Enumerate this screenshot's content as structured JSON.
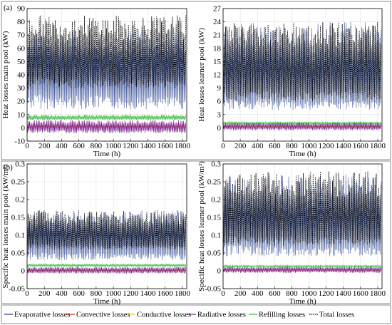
{
  "panel_labels": [
    "(a)",
    "(b)"
  ],
  "legend": [
    {
      "key": "evaporative",
      "label": "Evaporative losses",
      "color": "#1f3a8a",
      "dash": "solid"
    },
    {
      "key": "convective",
      "label": "Convective losses",
      "color": "#e0302a",
      "dash": "solid"
    },
    {
      "key": "conductive",
      "label": "Conductive losses",
      "color": "#e8c41a",
      "dash": "solid"
    },
    {
      "key": "radiative",
      "label": "Radiative losses",
      "color": "#7a1f8f",
      "dash": "solid"
    },
    {
      "key": "refilling",
      "label": "Refilling losses",
      "color": "#2db82d",
      "dash": "solid"
    },
    {
      "key": "total",
      "label": "Total losses",
      "color": "#000000",
      "dash": "dotted"
    }
  ],
  "chart_data": [
    {
      "type": "line",
      "panel": "(a)",
      "title": "",
      "xlabel": "Time (h)",
      "ylabel": "Heat losses main pool (kW)",
      "xlim": [
        0,
        1850
      ],
      "ylim": [
        -10,
        90
      ],
      "xticks": [
        0,
        200,
        400,
        600,
        800,
        1000,
        1200,
        1400,
        1600,
        1800
      ],
      "yticks": [
        -10,
        0,
        10,
        20,
        30,
        40,
        50,
        60,
        70,
        80,
        90
      ],
      "grid": true,
      "series": [
        {
          "name": "Evaporative losses",
          "x": [
            0,
            150,
            300,
            450,
            600,
            750,
            900,
            1050,
            1200,
            1350,
            1500,
            1650,
            1840
          ],
          "values": [
            38,
            40,
            36,
            34,
            37,
            39,
            35,
            33,
            34,
            36,
            35,
            34,
            33
          ],
          "range": [
            14,
            75
          ]
        },
        {
          "name": "Convective losses",
          "x": [
            0,
            300,
            600,
            900,
            1200,
            1500,
            1840
          ],
          "values": [
            1,
            1,
            1,
            1,
            1,
            1,
            1
          ],
          "range": [
            -1,
            3
          ]
        },
        {
          "name": "Conductive losses",
          "x": [
            0,
            300,
            600,
            900,
            1200,
            1500,
            1840
          ],
          "values": [
            0.5,
            0.5,
            0.5,
            0.5,
            0.5,
            0.5,
            0.5
          ],
          "range": [
            0,
            1
          ]
        },
        {
          "name": "Radiative losses",
          "x": [
            0,
            300,
            600,
            900,
            1200,
            1500,
            1840
          ],
          "values": [
            0,
            0.5,
            0,
            -0.5,
            0,
            0.5,
            0
          ],
          "range": [
            -4,
            6
          ]
        },
        {
          "name": "Refilling losses",
          "x": [
            0,
            300,
            600,
            900,
            1200,
            1500,
            1840
          ],
          "values": [
            7,
            7,
            7,
            7,
            7,
            7,
            7
          ],
          "range": [
            6,
            10
          ]
        },
        {
          "name": "Total losses",
          "x": [
            0,
            150,
            300,
            450,
            600,
            750,
            900,
            1050,
            1200,
            1350,
            1500,
            1650,
            1840
          ],
          "values": [
            47,
            49,
            45,
            43,
            46,
            48,
            44,
            42,
            43,
            45,
            44,
            43,
            42
          ],
          "range": [
            30,
            85
          ]
        }
      ]
    },
    {
      "type": "line",
      "panel": "(a)",
      "title": "",
      "xlabel": "Time (h)",
      "ylabel": "Heat losses learner pool (kW)",
      "xlim": [
        0,
        1850
      ],
      "ylim": [
        -3,
        27
      ],
      "xticks": [
        0,
        200,
        400,
        600,
        800,
        1000,
        1200,
        1400,
        1600,
        1800
      ],
      "yticks": [
        0,
        3,
        6,
        9,
        12,
        15,
        18,
        21,
        24,
        27
      ],
      "grid": true,
      "series": [
        {
          "name": "Evaporative losses",
          "x": [
            0,
            150,
            300,
            450,
            600,
            750,
            900,
            1050,
            1200,
            1350,
            1500,
            1650,
            1840
          ],
          "values": [
            9,
            10,
            9,
            9,
            9,
            9,
            8.5,
            8.5,
            9,
            9,
            8.5,
            8.5,
            8
          ],
          "range": [
            4,
            24
          ]
        },
        {
          "name": "Convective losses",
          "x": [
            0,
            300,
            600,
            900,
            1200,
            1500,
            1840
          ],
          "values": [
            0.3,
            0.3,
            0.3,
            0.3,
            0.3,
            0.3,
            0.3
          ],
          "range": [
            -0.2,
            0.8
          ]
        },
        {
          "name": "Conductive losses",
          "x": [
            0,
            300,
            600,
            900,
            1200,
            1500,
            1840
          ],
          "values": [
            0.2,
            0.2,
            0.2,
            0.2,
            0.2,
            0.2,
            0.2
          ],
          "range": [
            0,
            0.4
          ]
        },
        {
          "name": "Radiative losses",
          "x": [
            0,
            300,
            600,
            900,
            1200,
            1500,
            1840
          ],
          "values": [
            0.3,
            0.2,
            0.3,
            0.2,
            0.3,
            0.2,
            0.2
          ],
          "range": [
            -0.6,
            1.2
          ]
        },
        {
          "name": "Refilling losses",
          "x": [
            0,
            300,
            600,
            900,
            1200,
            1500,
            1840
          ],
          "values": [
            1,
            1,
            1,
            1,
            1,
            1,
            1
          ],
          "range": [
            0.8,
            1.4
          ]
        },
        {
          "name": "Total losses",
          "x": [
            0,
            150,
            300,
            450,
            600,
            750,
            900,
            1050,
            1200,
            1350,
            1500,
            1650,
            1840
          ],
          "values": [
            11,
            12,
            11,
            11,
            11,
            11,
            10.5,
            10.5,
            11,
            11,
            10.5,
            10.5,
            10
          ],
          "range": [
            6,
            24
          ]
        }
      ]
    },
    {
      "type": "line",
      "panel": "(b)",
      "title": "",
      "xlabel": "Time (h)",
      "ylabel": "Specific heat losses main pool (kW/m²)",
      "xlim": [
        0,
        1850
      ],
      "ylim": [
        -0.05,
        0.3
      ],
      "xticks": [
        0,
        200,
        400,
        600,
        800,
        1000,
        1200,
        1400,
        1600,
        1800
      ],
      "yticks": [
        -0.05,
        0,
        0.05,
        0.1,
        0.15,
        0.2,
        0.25,
        0.3
      ],
      "grid": true,
      "series": [
        {
          "name": "Evaporative losses",
          "x": [
            0,
            150,
            300,
            450,
            600,
            750,
            900,
            1050,
            1200,
            1350,
            1500,
            1650,
            1840
          ],
          "values": [
            0.075,
            0.08,
            0.072,
            0.068,
            0.074,
            0.078,
            0.07,
            0.066,
            0.068,
            0.072,
            0.07,
            0.068,
            0.066
          ],
          "range": [
            0.03,
            0.17
          ]
        },
        {
          "name": "Convective losses",
          "x": [
            0,
            300,
            600,
            900,
            1200,
            1500,
            1840
          ],
          "values": [
            0.002,
            0.002,
            0.002,
            0.002,
            0.002,
            0.002,
            0.002
          ],
          "range": [
            -0.002,
            0.006
          ]
        },
        {
          "name": "Conductive losses",
          "x": [
            0,
            300,
            600,
            900,
            1200,
            1500,
            1840
          ],
          "values": [
            0.001,
            0.001,
            0.001,
            0.001,
            0.001,
            0.001,
            0.001
          ],
          "range": [
            0,
            0.002
          ]
        },
        {
          "name": "Radiative losses",
          "x": [
            0,
            300,
            600,
            900,
            1200,
            1500,
            1840
          ],
          "values": [
            0,
            0.001,
            0,
            -0.001,
            0,
            0.001,
            0
          ],
          "range": [
            -0.008,
            0.012
          ]
        },
        {
          "name": "Refilling losses",
          "x": [
            0,
            300,
            600,
            900,
            1200,
            1500,
            1840
          ],
          "values": [
            0.014,
            0.014,
            0.014,
            0.014,
            0.014,
            0.014,
            0.014
          ],
          "range": [
            0.012,
            0.02
          ]
        },
        {
          "name": "Total losses",
          "x": [
            0,
            150,
            300,
            450,
            600,
            750,
            900,
            1050,
            1200,
            1350,
            1500,
            1650,
            1840
          ],
          "values": [
            0.094,
            0.098,
            0.09,
            0.086,
            0.092,
            0.096,
            0.088,
            0.084,
            0.086,
            0.09,
            0.088,
            0.086,
            0.084
          ],
          "range": [
            0.06,
            0.17
          ]
        }
      ]
    },
    {
      "type": "line",
      "panel": "(b)",
      "title": "",
      "xlabel": "Time (h)",
      "ylabel": "Specific heat losses learner pool (kW/m²)",
      "xlim": [
        0,
        1850
      ],
      "ylim": [
        -0.05,
        0.3
      ],
      "xticks": [
        0,
        200,
        400,
        600,
        800,
        1000,
        1200,
        1400,
        1600,
        1800
      ],
      "yticks": [
        -0.05,
        0,
        0.05,
        0.1,
        0.15,
        0.2,
        0.25,
        0.3
      ],
      "grid": true,
      "series": [
        {
          "name": "Evaporative losses",
          "x": [
            0,
            150,
            300,
            450,
            600,
            750,
            900,
            1050,
            1200,
            1350,
            1500,
            1650,
            1840
          ],
          "values": [
            0.105,
            0.115,
            0.105,
            0.1,
            0.105,
            0.105,
            0.1,
            0.098,
            0.102,
            0.102,
            0.1,
            0.098,
            0.095
          ],
          "range": [
            0.04,
            0.27
          ]
        },
        {
          "name": "Convective losses",
          "x": [
            0,
            300,
            600,
            900,
            1200,
            1500,
            1840
          ],
          "values": [
            0.003,
            0.003,
            0.003,
            0.003,
            0.003,
            0.003,
            0.003
          ],
          "range": [
            -0.002,
            0.008
          ]
        },
        {
          "name": "Conductive losses",
          "x": [
            0,
            300,
            600,
            900,
            1200,
            1500,
            1840
          ],
          "values": [
            0.002,
            0.002,
            0.002,
            0.002,
            0.002,
            0.002,
            0.002
          ],
          "range": [
            0,
            0.004
          ]
        },
        {
          "name": "Radiative losses",
          "x": [
            0,
            300,
            600,
            900,
            1200,
            1500,
            1840
          ],
          "values": [
            0.003,
            0.002,
            0.003,
            0.002,
            0.003,
            0.002,
            0.002
          ],
          "range": [
            -0.006,
            0.012
          ]
        },
        {
          "name": "Refilling losses",
          "x": [
            0,
            300,
            600,
            900,
            1200,
            1500,
            1840
          ],
          "values": [
            0.012,
            0.012,
            0.012,
            0.012,
            0.012,
            0.012,
            0.012
          ],
          "range": [
            0.01,
            0.016
          ]
        },
        {
          "name": "Total losses",
          "x": [
            0,
            150,
            300,
            450,
            600,
            750,
            900,
            1050,
            1200,
            1350,
            1500,
            1650,
            1840
          ],
          "values": [
            0.125,
            0.135,
            0.125,
            0.12,
            0.125,
            0.125,
            0.12,
            0.118,
            0.122,
            0.122,
            0.12,
            0.118,
            0.115
          ],
          "range": [
            0.07,
            0.28
          ]
        }
      ]
    }
  ]
}
